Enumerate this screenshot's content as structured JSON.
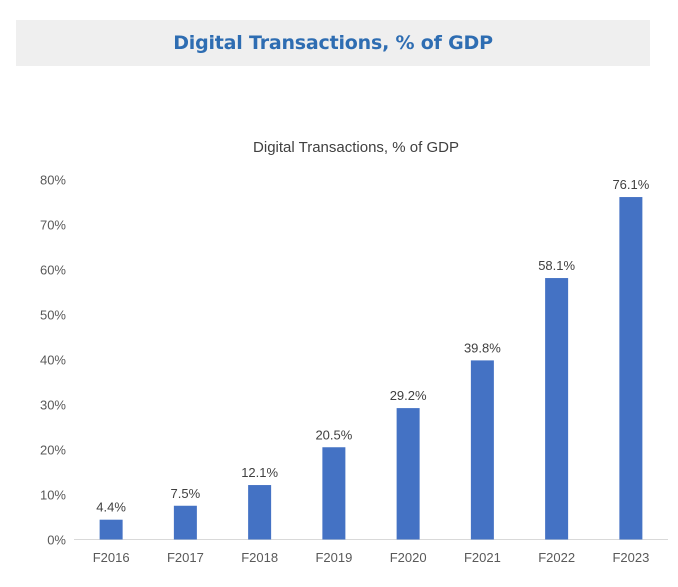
{
  "header": {
    "title": "Digital Transactions, % of GDP"
  },
  "colors": {
    "bar": "#4472c4",
    "header_bg": "#efefef",
    "header_text": "#2e6db2"
  },
  "chart_data": {
    "type": "bar",
    "title": "Digital Transactions, % of GDP",
    "xlabel": "",
    "ylabel": "",
    "categories": [
      "F2016",
      "F2017",
      "F2018",
      "F2019",
      "F2020",
      "F2021",
      "F2022",
      "F2023"
    ],
    "values": [
      4.4,
      7.5,
      12.1,
      20.5,
      29.2,
      39.8,
      58.1,
      76.1
    ],
    "data_labels": [
      "4.4%",
      "7.5%",
      "12.1%",
      "20.5%",
      "29.2%",
      "39.8%",
      "58.1%",
      "76.1%"
    ],
    "ylim": [
      0,
      80
    ],
    "yticks": [
      0,
      10,
      20,
      30,
      40,
      50,
      60,
      70,
      80
    ],
    "ytick_labels": [
      "0%",
      "10%",
      "20%",
      "30%",
      "40%",
      "50%",
      "60%",
      "70%",
      "80%"
    ],
    "grid": false,
    "legend": "none"
  }
}
